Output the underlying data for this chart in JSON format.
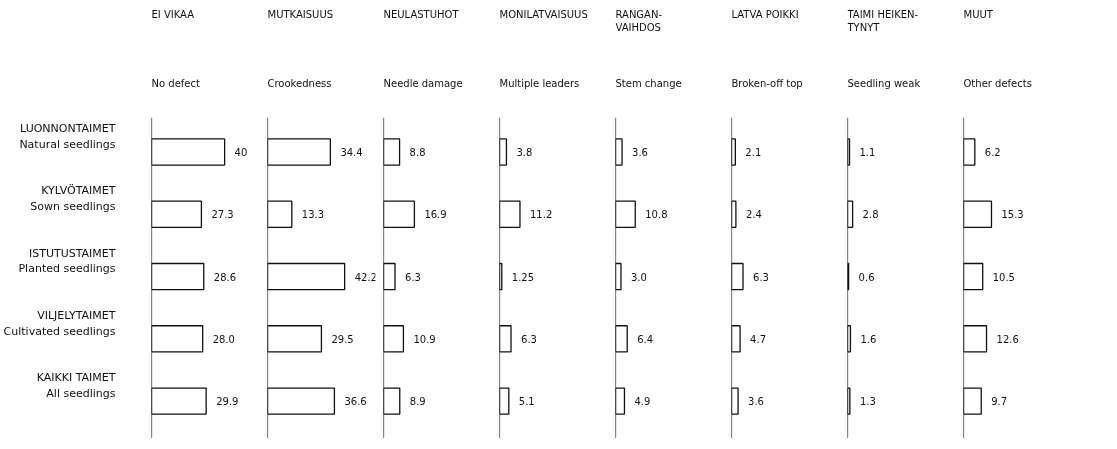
{
  "chart_data": [
    {
      "type": "bar",
      "orientation": "horizontal",
      "title": "EI VIKAA",
      "subtitle": "No defect",
      "categories": [
        "LUONNONTAIMET\nNatural seedlings",
        "KYLVÖTAIMET\nSown seedlings",
        "ISTUTUSTAIMET\nPlanted seedlings",
        "VILJELYTAIMET\nCultivated seedlings",
        "KAIKKI TAIMET\nAll seedlings"
      ],
      "values": [
        40,
        27.3,
        28.6,
        28.0,
        29.9
      ],
      "value_labels": [
        "40",
        "27.3",
        "28.6",
        "28.0",
        "29.9"
      ],
      "color": "#ffffff",
      "tick_labels": "y"
    },
    {
      "type": "bar",
      "orientation": "horizontal",
      "title": "MUTKAISUUS",
      "subtitle": "Crookedness",
      "categories": [
        null,
        null,
        null,
        null,
        null
      ],
      "values": [
        34.4,
        13.3,
        42.2,
        29.5,
        36.6
      ],
      "data_labels": true,
      "color": "#ffffff",
      "tick_labels": false
    },
    {
      "type": "bar",
      "orientation": "horizontal",
      "title": "NEULASTUHOT",
      "subtitle": "Needle damage",
      "categories": [
        null,
        null,
        null,
        null,
        null
      ],
      "values": [
        8.8,
        16.9,
        6.3,
        10.9,
        8.9
      ],
      "data_labels": true,
      "color": "#ffffff",
      "tick_labels": false
    },
    {
      "type": "bar",
      "orientation": "horizontal",
      "title": "MONILATVAISUUS",
      "subtitle": "Multiple leaders",
      "categories": [
        null,
        null,
        null,
        null,
        null
      ],
      "values": [
        3.8,
        11.2,
        1.25,
        6.3,
        5.1
      ],
      "data_labels": true,
      "color": "#ffffff",
      "tick_labels": false
    },
    {
      "type": "bar",
      "orientation": "horizontal",
      "title": "RANGAN-\nVAIHDOS",
      "subtitle": "Stem change",
      "categories": [
        null,
        null,
        null,
        null,
        null
      ],
      "values": [
        3.6,
        10.8,
        3.0,
        6.4,
        4.9
      ],
      "value_labels": [
        "3.6",
        "10.8",
        "3.0",
        "6.4",
        "4.9"
      ],
      "color": "#ffffff",
      "tick_labels": false
    },
    {
      "type": "bar",
      "orientation": "horizontal",
      "title": "LATVA POIKKI",
      "subtitle": "Broken-off top",
      "categories": [
        null,
        null,
        null,
        null,
        null
      ],
      "values": [
        2.1,
        2.4,
        6.3,
        4.7,
        3.6
      ],
      "data_labels": true,
      "color": "#ffffff",
      "tick_labels": false
    },
    {
      "type": "bar",
      "orientation": "horizontal",
      "title": "TAIMI HEIKEN-\nTYNYT",
      "subtitle": "Seedling weak",
      "categories": [
        null,
        null,
        null,
        null,
        null
      ],
      "values": [
        1.1,
        2.8,
        0.6,
        1.6,
        1.3
      ],
      "data_labels": true,
      "color": "#ffffff",
      "tick_labels": false
    },
    {
      "type": "bar",
      "orientation": "horizontal",
      "title": "MUUT",
      "subtitle": "Other defects",
      "categories": [
        null,
        null,
        null,
        null,
        null
      ],
      "values": [
        6.2,
        15.3,
        10.5,
        12.6,
        9.7
      ],
      "data_labels": true,
      "color": "#ffffff",
      "tick_labels": false
    }
  ]
}
